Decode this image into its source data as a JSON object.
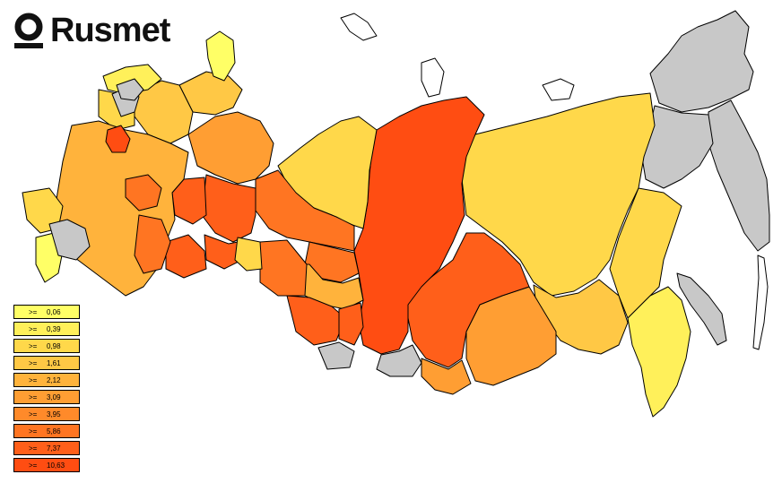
{
  "logo": {
    "text": "Rusmet",
    "icon": "rusmet-ring-logo"
  },
  "legend": {
    "operator": ">=",
    "items": [
      {
        "value": "0,06",
        "color": "#ffff66"
      },
      {
        "value": "0,39",
        "color": "#fff05a"
      },
      {
        "value": "0,98",
        "color": "#ffd84a"
      },
      {
        "value": "1,61",
        "color": "#ffc845"
      },
      {
        "value": "2,12",
        "color": "#ffb33c"
      },
      {
        "value": "3,09",
        "color": "#ff9e33"
      },
      {
        "value": "3,95",
        "color": "#ff8a2a"
      },
      {
        "value": "5,86",
        "color": "#ff7522"
      },
      {
        "value": "7,37",
        "color": "#ff5f1a"
      },
      {
        "value": "10,63",
        "color": "#ff4d12"
      }
    ]
  },
  "colors": {
    "no_data": "#c8c8c8",
    "background": "#ffffff"
  }
}
